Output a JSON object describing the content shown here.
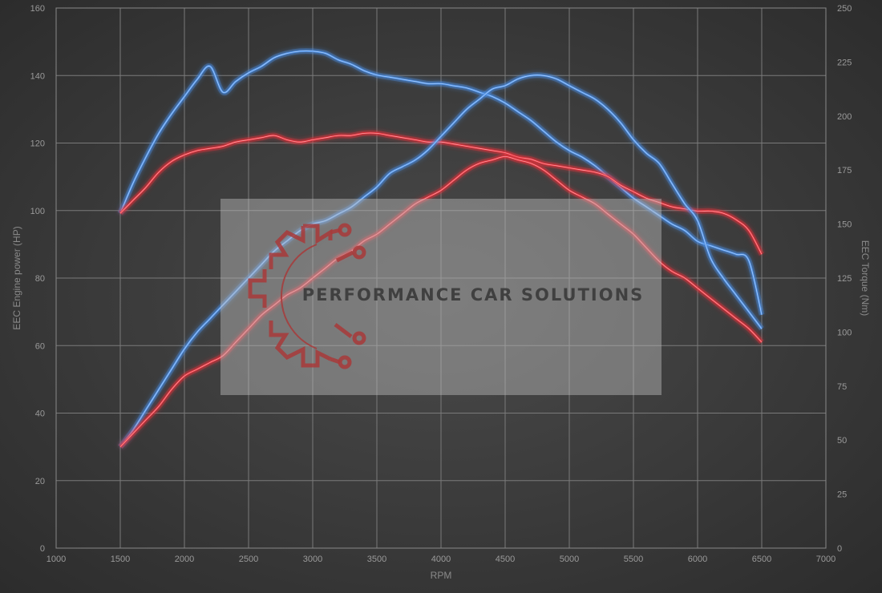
{
  "chart_data": {
    "type": "line",
    "x": [
      1500,
      1600,
      1700,
      1800,
      1900,
      2000,
      2100,
      2200,
      2300,
      2400,
      2500,
      2600,
      2700,
      2800,
      2900,
      3000,
      3100,
      3200,
      3300,
      3400,
      3500,
      3600,
      3700,
      3800,
      3900,
      4000,
      4100,
      4200,
      4300,
      4400,
      4500,
      4600,
      4700,
      4800,
      4900,
      5000,
      5100,
      5200,
      5300,
      5400,
      5500,
      5600,
      5700,
      5800,
      5900,
      6000,
      6100,
      6200,
      6300,
      6400,
      6500
    ],
    "xlabel": "RPM",
    "ylabel_left": "EEC Engine power (HP)",
    "ylabel_right": "EEC Torque (Nm)",
    "xlim": [
      1000,
      7000
    ],
    "ylim_left": [
      0,
      160
    ],
    "ylim_right": [
      0,
      250
    ],
    "x_ticks": [
      "1000",
      "1500",
      "2000",
      "2500",
      "3000",
      "3500",
      "4000",
      "4500",
      "5000",
      "5500",
      "6000",
      "6500",
      "7000"
    ],
    "y_left_ticks": [
      "0",
      "20",
      "40",
      "60",
      "80",
      "100",
      "120",
      "140",
      "160"
    ],
    "y_right_ticks": [
      "0",
      "25",
      "50",
      "75",
      "100",
      "125",
      "150",
      "175",
      "200",
      "225",
      "250"
    ],
    "grid": true,
    "legend": "none",
    "series": [
      {
        "color": "#4a8fe8",
        "axis": "right",
        "values": [
          155,
          169,
          181,
          192,
          201,
          209,
          217,
          223,
          211,
          216,
          220,
          223,
          227,
          229,
          230,
          230,
          229,
          226,
          224,
          221,
          219,
          218,
          217,
          216,
          215,
          215,
          214,
          213,
          211,
          209,
          206,
          202,
          198,
          193,
          188,
          184,
          181,
          177,
          172,
          167,
          162,
          158,
          154,
          150,
          147,
          142,
          140,
          138,
          136,
          133,
          108
        ]
      },
      {
        "color": "#e8303a",
        "axis": "right",
        "values": [
          155,
          161,
          167,
          174,
          179,
          182,
          184,
          185,
          186,
          188,
          189,
          190,
          191,
          189,
          188,
          189,
          190,
          191,
          191,
          192,
          192,
          191,
          190,
          189,
          188,
          188,
          187,
          186,
          185,
          184,
          183,
          181,
          180,
          178,
          177,
          176,
          175,
          174,
          172,
          168,
          165,
          162,
          160,
          158,
          157,
          156,
          156,
          155,
          152,
          147,
          136
        ]
      },
      {
        "color": "#4a8fe8",
        "axis": "left",
        "values": [
          30,
          35,
          41,
          47,
          53,
          59,
          64,
          68,
          72,
          76,
          80,
          84,
          88,
          91,
          94,
          96,
          97,
          99,
          101,
          104,
          107,
          111,
          113,
          115,
          118,
          122,
          126,
          130,
          133,
          136,
          137,
          139,
          140,
          140,
          139,
          137,
          135,
          133,
          130,
          126,
          121,
          117,
          114,
          108,
          102,
          97,
          86,
          80,
          75,
          70,
          65
        ]
      },
      {
        "color": "#e8303a",
        "axis": "left",
        "values": [
          30,
          34,
          38,
          42,
          47,
          51,
          53,
          55,
          57,
          61,
          65,
          69,
          72,
          75,
          77,
          80,
          83,
          86,
          88,
          91,
          93,
          96,
          99,
          102,
          104,
          106,
          109,
          112,
          114,
          115,
          116,
          115,
          114,
          112,
          109,
          106,
          104,
          102,
          99,
          96,
          93,
          89,
          85,
          82,
          80,
          77,
          74,
          71,
          68,
          65,
          61
        ]
      }
    ]
  },
  "watermark": {
    "text": "PERFORMANCE CAR SOLUTIONS",
    "logo_color": "#a83a3a"
  }
}
